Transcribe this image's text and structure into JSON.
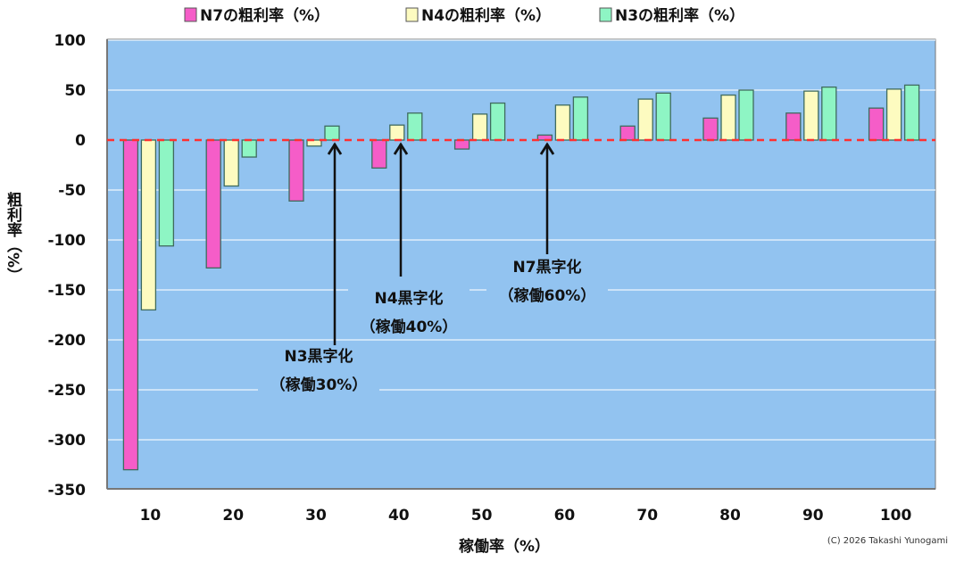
{
  "chart_data": {
    "type": "bar",
    "title": "",
    "xlabel": "稼働率（%）",
    "ylabel": "粗利率（%）",
    "categories": [
      "10",
      "20",
      "30",
      "40",
      "50",
      "60",
      "70",
      "80",
      "90",
      "100"
    ],
    "ylim": [
      -350,
      100
    ],
    "yticks": [
      100,
      50,
      0,
      -50,
      -100,
      -150,
      -200,
      -250,
      -300,
      -350
    ],
    "grid": true,
    "legend_position": "top",
    "series": [
      {
        "name": "N7の粗利率（%）",
        "color": "#f55dc8",
        "values": [
          -330,
          -128,
          -61,
          -28,
          -9,
          5,
          14,
          22,
          27,
          32
        ]
      },
      {
        "name": "N4の粗利率（%）",
        "color": "#fdfbc0",
        "values": [
          -170,
          -46,
          -6,
          15,
          26,
          35,
          41,
          45,
          49,
          51
        ]
      },
      {
        "name": "N3の粗利率（%）",
        "color": "#8ef5c4",
        "values": [
          -106,
          -17,
          14,
          27,
          37,
          43,
          47,
          50,
          53,
          55
        ]
      }
    ],
    "zero_line_color": "#ff3030",
    "plot_background": "#92c3f0",
    "annotations": [
      {
        "line1": "N3黒字化",
        "line2": "（稼働30%）",
        "category": "30"
      },
      {
        "line1": "N4黒字化",
        "line2": "（稼働40%）",
        "category": "40"
      },
      {
        "line1": "N7黒字化",
        "line2": "（稼働60%）",
        "category": "60"
      }
    ],
    "copyright": "(C)  2026 Takashi Yunogami"
  }
}
